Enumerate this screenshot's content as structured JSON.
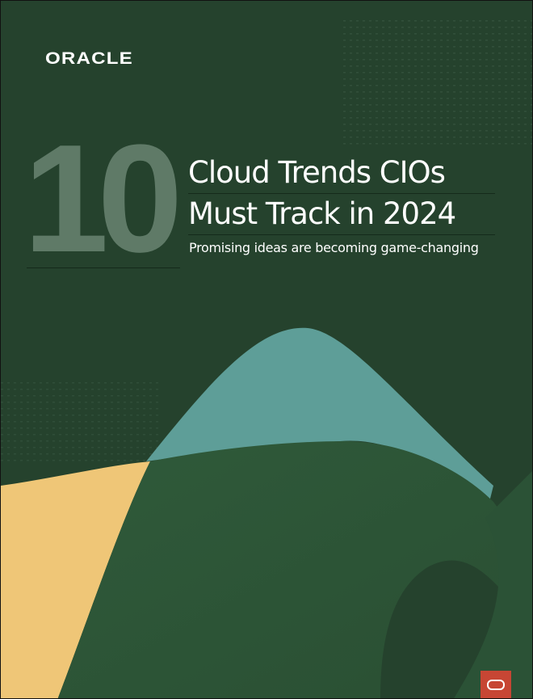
{
  "brand": {
    "logo_text": "ORACLE",
    "accent": "#c74634",
    "badge_icon": "oracle-o-icon"
  },
  "cover": {
    "number": "10",
    "title_lines": [
      "Cloud Trends CIOs",
      "Must Track in 2024"
    ],
    "subtitle": "Promising ideas are becoming game-changing"
  },
  "colors": {
    "background": "#25422d",
    "teal": "#5e9e98",
    "yellow": "#efc677",
    "number": "#5f7a67"
  }
}
